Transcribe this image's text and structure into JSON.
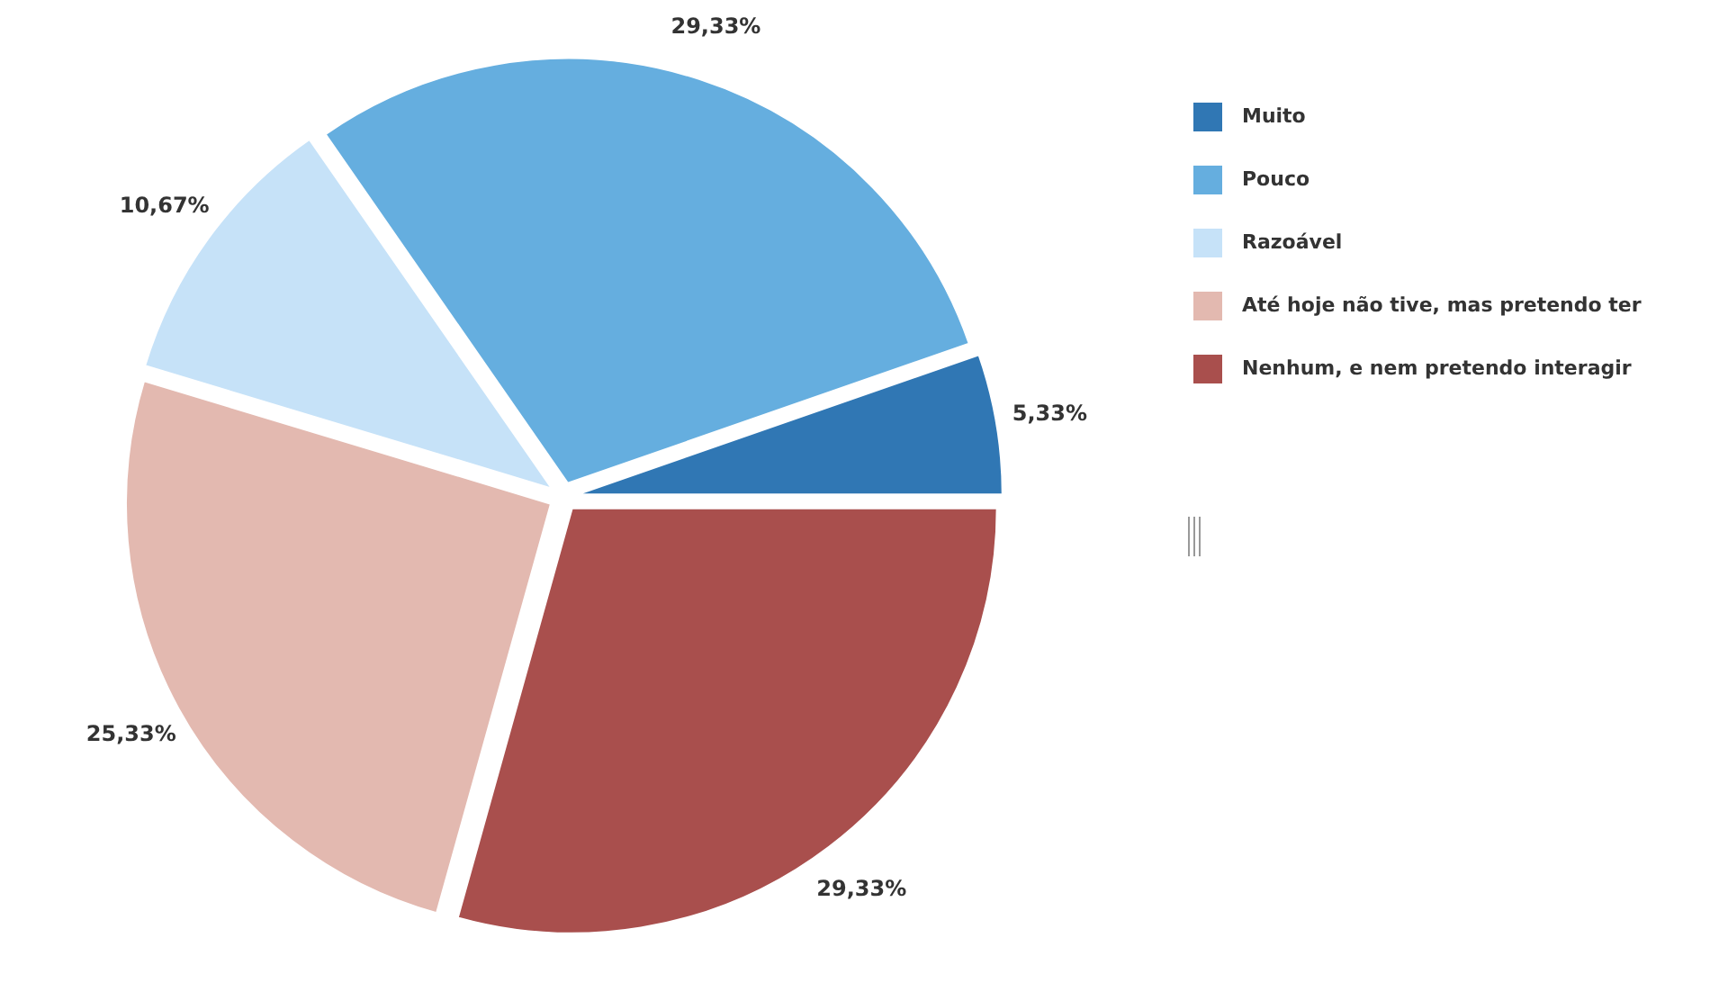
{
  "chart_data": {
    "type": "pie",
    "categories": [
      "Muito",
      "Pouco",
      "Razoável",
      "Até hoje não tive, mas pretendo ter",
      "Nenhum, e nem pretendo interagir"
    ],
    "values": [
      5.33,
      29.33,
      10.67,
      25.33,
      29.33
    ],
    "value_labels": [
      "5,33%",
      "29,33%",
      "10,67%",
      "25,33%",
      "29,33%"
    ],
    "colors": [
      "#3077b4",
      "#65aedf",
      "#c6e2f8",
      "#e3b9b0",
      "#a94f4d"
    ],
    "legend": "right"
  }
}
